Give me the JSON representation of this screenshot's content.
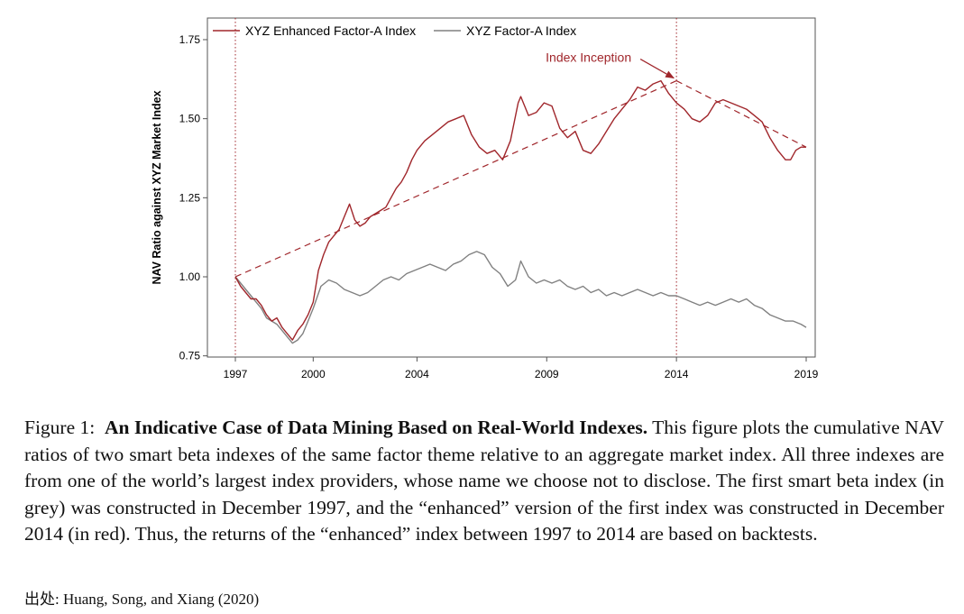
{
  "chart_data": {
    "type": "line",
    "ylabel": "NAV Ratio against XYZ Market Index",
    "xlabel": "",
    "xlim": [
      1997,
      2019
    ],
    "ylim": [
      0.75,
      1.78
    ],
    "x_ticks": [
      1997,
      2000,
      2004,
      2009,
      2014,
      2019
    ],
    "y_ticks": [
      "0.75",
      "1.00",
      "1.25",
      "1.50",
      "1.75"
    ],
    "legend_placement": "top-left",
    "grid": false,
    "colors": {
      "enhanced": "#a0262b",
      "factor": "#808080",
      "dashed": "#a0262b",
      "vline": "#a0262b"
    },
    "series": [
      {
        "name": "XYZ Enhanced Factor-A Index",
        "x": [
          1997.0,
          1997.2,
          1997.4,
          1997.6,
          1997.8,
          1998.0,
          1998.2,
          1998.4,
          1998.6,
          1998.8,
          1999.0,
          1999.2,
          1999.4,
          1999.6,
          1999.8,
          2000.0,
          2000.2,
          2000.4,
          2000.6,
          2000.8,
          2001.0,
          2001.2,
          2001.4,
          2001.6,
          2001.8,
          2002.0,
          2002.2,
          2002.4,
          2002.6,
          2002.8,
          2003.0,
          2003.2,
          2003.4,
          2003.6,
          2003.8,
          2004.0,
          2004.3,
          2004.6,
          2004.9,
          2005.2,
          2005.5,
          2005.8,
          2006.1,
          2006.4,
          2006.7,
          2007.0,
          2007.3,
          2007.6,
          2007.9,
          2008.0,
          2008.3,
          2008.6,
          2008.9,
          2009.2,
          2009.5,
          2009.8,
          2010.1,
          2010.4,
          2010.7,
          2011.0,
          2011.3,
          2011.6,
          2011.9,
          2012.2,
          2012.5,
          2012.8,
          2013.1,
          2013.4,
          2013.7,
          2014.0,
          2014.3,
          2014.6,
          2014.9,
          2015.2,
          2015.5,
          2015.8,
          2016.1,
          2016.4,
          2016.7,
          2017.0,
          2017.3,
          2017.6,
          2017.9,
          2018.2,
          2018.4,
          2018.6,
          2018.8,
          2019.0
        ],
        "values": [
          1.0,
          0.97,
          0.95,
          0.93,
          0.93,
          0.91,
          0.88,
          0.86,
          0.87,
          0.84,
          0.82,
          0.8,
          0.83,
          0.85,
          0.88,
          0.92,
          1.02,
          1.07,
          1.11,
          1.13,
          1.15,
          1.19,
          1.23,
          1.18,
          1.16,
          1.17,
          1.19,
          1.2,
          1.21,
          1.22,
          1.25,
          1.28,
          1.3,
          1.33,
          1.37,
          1.4,
          1.43,
          1.45,
          1.47,
          1.49,
          1.5,
          1.51,
          1.45,
          1.41,
          1.39,
          1.4,
          1.37,
          1.43,
          1.55,
          1.57,
          1.51,
          1.52,
          1.55,
          1.54,
          1.47,
          1.44,
          1.46,
          1.4,
          1.39,
          1.42,
          1.46,
          1.5,
          1.53,
          1.56,
          1.6,
          1.59,
          1.61,
          1.62,
          1.58,
          1.55,
          1.53,
          1.5,
          1.49,
          1.51,
          1.55,
          1.56,
          1.55,
          1.54,
          1.53,
          1.51,
          1.49,
          1.44,
          1.4,
          1.37,
          1.37,
          1.4,
          1.41,
          1.41
        ]
      },
      {
        "name": "XYZ Factor-A Index",
        "x": [
          1997.0,
          1997.2,
          1997.4,
          1997.6,
          1997.8,
          1998.0,
          1998.2,
          1998.4,
          1998.6,
          1998.8,
          1999.0,
          1999.2,
          1999.4,
          1999.6,
          1999.8,
          2000.0,
          2000.3,
          2000.6,
          2000.9,
          2001.2,
          2001.5,
          2001.8,
          2002.1,
          2002.4,
          2002.7,
          2003.0,
          2003.3,
          2003.6,
          2003.9,
          2004.2,
          2004.5,
          2004.8,
          2005.1,
          2005.4,
          2005.7,
          2006.0,
          2006.3,
          2006.6,
          2006.9,
          2007.2,
          2007.5,
          2007.8,
          2008.0,
          2008.3,
          2008.6,
          2008.9,
          2009.2,
          2009.5,
          2009.8,
          2010.1,
          2010.4,
          2010.7,
          2011.0,
          2011.3,
          2011.6,
          2011.9,
          2012.2,
          2012.5,
          2012.8,
          2013.1,
          2013.4,
          2013.7,
          2014.0,
          2014.3,
          2014.6,
          2014.9,
          2015.2,
          2015.5,
          2015.8,
          2016.1,
          2016.4,
          2016.7,
          2017.0,
          2017.3,
          2017.6,
          2017.9,
          2018.2,
          2018.5,
          2018.8,
          2019.0
        ],
        "values": [
          1.0,
          0.98,
          0.96,
          0.94,
          0.92,
          0.9,
          0.87,
          0.86,
          0.85,
          0.83,
          0.81,
          0.79,
          0.8,
          0.82,
          0.86,
          0.9,
          0.97,
          0.99,
          0.98,
          0.96,
          0.95,
          0.94,
          0.95,
          0.97,
          0.99,
          1.0,
          0.99,
          1.01,
          1.02,
          1.03,
          1.04,
          1.03,
          1.02,
          1.04,
          1.05,
          1.07,
          1.08,
          1.07,
          1.03,
          1.01,
          0.97,
          0.99,
          1.05,
          1.0,
          0.98,
          0.99,
          0.98,
          0.99,
          0.97,
          0.96,
          0.97,
          0.95,
          0.96,
          0.94,
          0.95,
          0.94,
          0.95,
          0.96,
          0.95,
          0.94,
          0.95,
          0.94,
          0.94,
          0.93,
          0.92,
          0.91,
          0.92,
          0.91,
          0.92,
          0.93,
          0.92,
          0.93,
          0.91,
          0.9,
          0.88,
          0.87,
          0.86,
          0.86,
          0.85,
          0.84
        ]
      }
    ],
    "trend_lines": [
      {
        "x": [
          1997,
          2014
        ],
        "values": [
          1.0,
          1.62
        ]
      },
      {
        "x": [
          2014,
          2019
        ],
        "values": [
          1.62,
          1.41
        ]
      }
    ],
    "vlines": [
      1997,
      2014
    ],
    "annotation": {
      "text": "Index Inception",
      "x": 2014,
      "y": 1.62
    }
  },
  "caption": {
    "figure_label": "Figure 1:",
    "title": "An Indicative Case of Data Mining Based on Real-World Indexes.",
    "body": "This figure plots the cumulative NAV ratios of two smart beta indexes of the same factor theme relative to an aggregate market index. All three indexes are from one of the world’s largest index providers, whose name we choose not to disclose. The first smart beta index (in grey) was constructed in December 1997, and the “enhanced” version of the first index was constructed in December 2014 (in red). Thus, the returns of the “enhanced” index between 1997 to 2014 are based on backtests."
  },
  "source": {
    "label": "出处:",
    "text": "Huang, Song, and Xiang (2020)"
  }
}
